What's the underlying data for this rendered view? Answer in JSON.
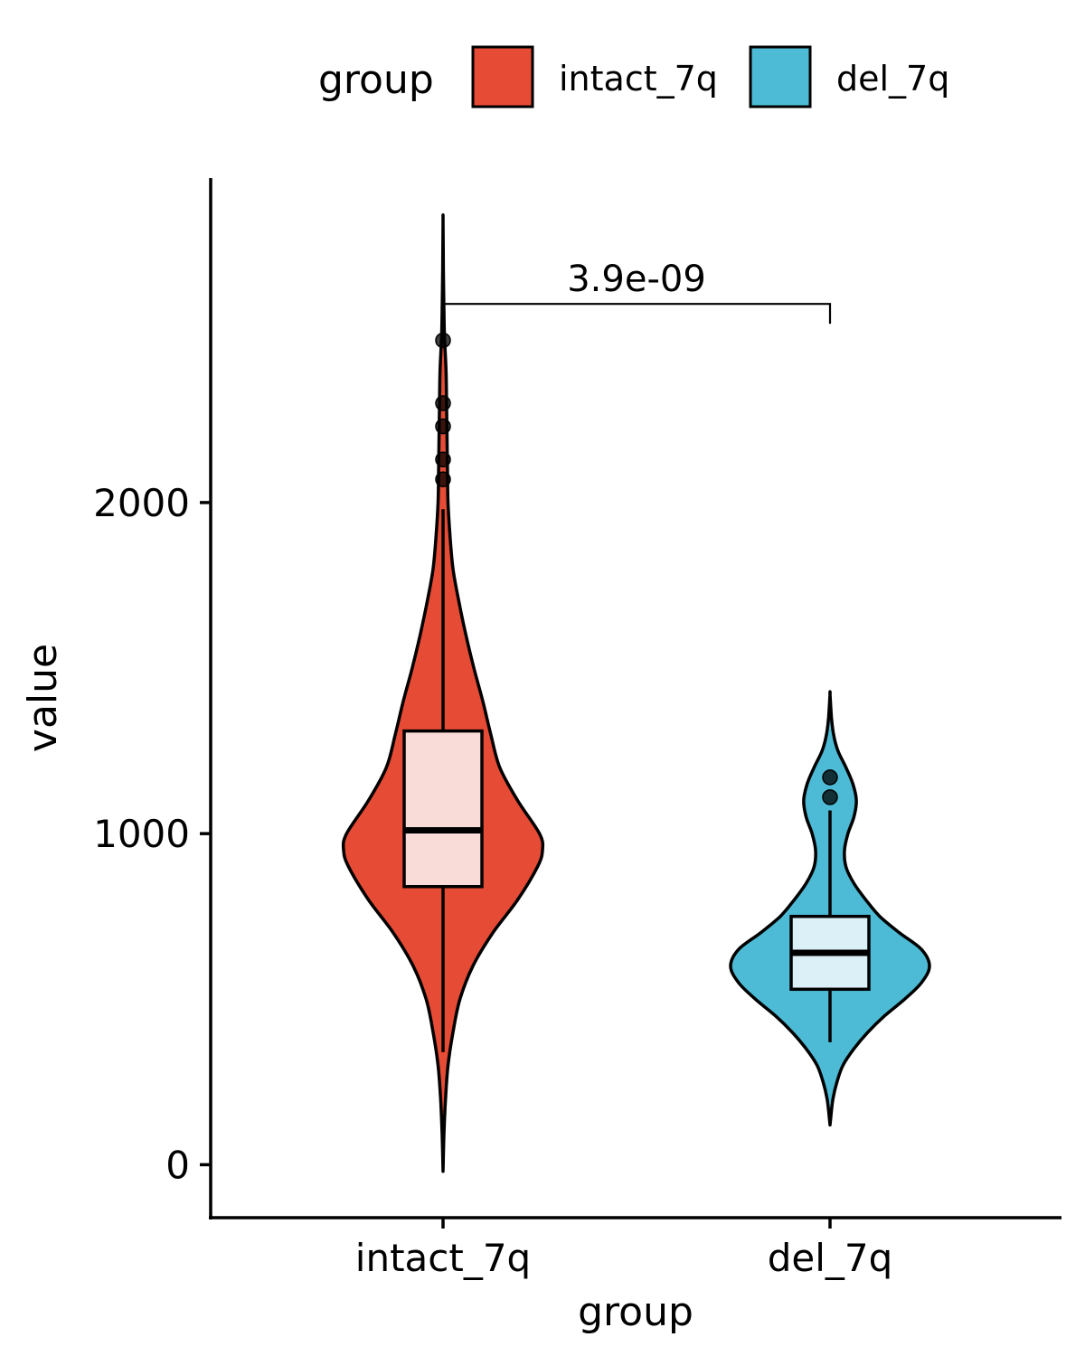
{
  "chart_data": {
    "type": "violin",
    "xlabel": "group",
    "ylabel": "value",
    "ylim": [
      -160,
      2980
    ],
    "yticks": [
      0,
      1000,
      2000
    ],
    "categories": [
      "intact_7q",
      "del_7q"
    ],
    "grid": false,
    "legend": {
      "title": "group",
      "position": "top",
      "entries": [
        {
          "label": "intact_7q",
          "color": "#E64B35"
        },
        {
          "label": "del_7q",
          "color": "#4DBBD5"
        }
      ]
    },
    "series": [
      {
        "name": "intact_7q",
        "color": "#E64B35",
        "box_fill": "#F9DBD7",
        "violin_range": [
          -20,
          2850
        ],
        "violin_profile": [
          [
            -20,
            0.0
          ],
          [
            100,
            0.01
          ],
          [
            200,
            0.025
          ],
          [
            300,
            0.05
          ],
          [
            400,
            0.1
          ],
          [
            500,
            0.17
          ],
          [
            600,
            0.3
          ],
          [
            700,
            0.5
          ],
          [
            800,
            0.75
          ],
          [
            900,
            0.95
          ],
          [
            950,
            1.0
          ],
          [
            1000,
            0.97
          ],
          [
            1100,
            0.75
          ],
          [
            1200,
            0.57
          ],
          [
            1300,
            0.48
          ],
          [
            1400,
            0.4
          ],
          [
            1500,
            0.31
          ],
          [
            1600,
            0.23
          ],
          [
            1700,
            0.16
          ],
          [
            1800,
            0.1
          ],
          [
            1900,
            0.07
          ],
          [
            2000,
            0.05
          ],
          [
            2100,
            0.045
          ],
          [
            2200,
            0.04
          ],
          [
            2300,
            0.035
          ],
          [
            2400,
            0.03
          ],
          [
            2500,
            0.015
          ],
          [
            2600,
            0.008
          ],
          [
            2700,
            0.004
          ],
          [
            2850,
            0.0
          ]
        ],
        "box": {
          "whisker_low": 340,
          "q1": 840,
          "median": 1010,
          "q3": 1310,
          "whisker_high": 1980
        },
        "outliers": [
          2070,
          2130,
          2230,
          2300,
          2490
        ]
      },
      {
        "name": "del_7q",
        "color": "#4DBBD5",
        "box_fill": "#DBF1F7",
        "violin_range": [
          120,
          1420
        ],
        "violin_profile": [
          [
            120,
            0.0
          ],
          [
            150,
            0.01
          ],
          [
            200,
            0.03
          ],
          [
            250,
            0.07
          ],
          [
            300,
            0.13
          ],
          [
            350,
            0.24
          ],
          [
            400,
            0.38
          ],
          [
            450,
            0.55
          ],
          [
            500,
            0.75
          ],
          [
            550,
            0.92
          ],
          [
            600,
            1.0
          ],
          [
            650,
            0.92
          ],
          [
            700,
            0.7
          ],
          [
            750,
            0.5
          ],
          [
            800,
            0.36
          ],
          [
            850,
            0.24
          ],
          [
            900,
            0.16
          ],
          [
            950,
            0.145
          ],
          [
            1000,
            0.18
          ],
          [
            1050,
            0.24
          ],
          [
            1100,
            0.265
          ],
          [
            1150,
            0.23
          ],
          [
            1200,
            0.16
          ],
          [
            1250,
            0.08
          ],
          [
            1300,
            0.035
          ],
          [
            1350,
            0.015
          ],
          [
            1420,
            0.0
          ]
        ],
        "box": {
          "whisker_low": 370,
          "q1": 530,
          "median": 640,
          "q3": 750,
          "whisker_high": 1070
        },
        "outliers": [
          1110,
          1170
        ]
      }
    ],
    "comparison": {
      "label": "3.9e-09",
      "from": "intact_7q",
      "to": "del_7q",
      "y": 2600,
      "tick_low_right": 2540
    }
  }
}
